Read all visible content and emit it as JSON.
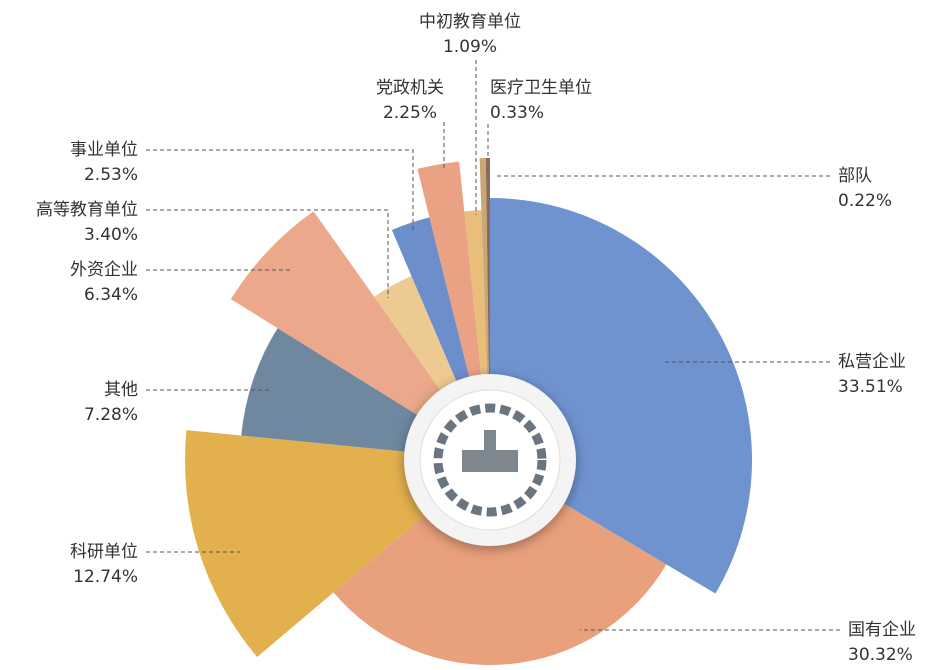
{
  "chart_data": {
    "type": "pie",
    "categories": [
      "私营企业",
      "国有企业",
      "科研单位",
      "其他",
      "外资企业",
      "高等教育单位",
      "事业单位",
      "党政机关",
      "中初教育单位",
      "医疗卫生单位",
      "部队"
    ],
    "values": [
      33.51,
      30.32,
      12.74,
      7.28,
      6.34,
      3.4,
      2.53,
      2.25,
      1.09,
      0.33,
      0.22
    ],
    "value_labels": [
      "33.51%",
      "30.32%",
      "12.74%",
      "7.28%",
      "6.34%",
      "3.40%",
      "2.53%",
      "2.25%",
      "1.09%",
      "0.33%",
      "0.22%"
    ],
    "colors": [
      "#6f93cf",
      "#e9a07c",
      "#e3b04e",
      "#6f889f",
      "#eba88a",
      "#ecca92",
      "#6c8fcc",
      "#eaa184",
      "#e8be7a",
      "#c9a878",
      "#8b6b5a"
    ]
  }
}
